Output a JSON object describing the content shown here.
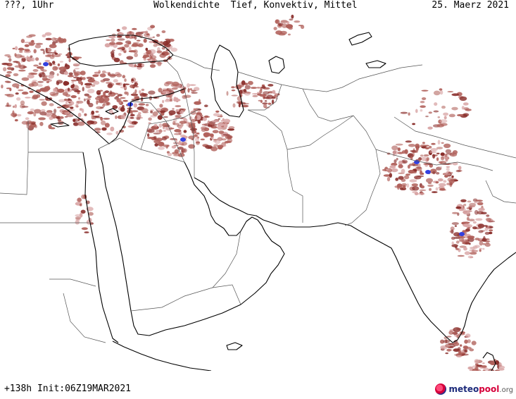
{
  "header": {
    "run_label": "???, 1Uhr",
    "title": "Wolkendichte  Tief, Konvektiv, Mittel",
    "date": "25. Maerz 2021"
  },
  "footer": {
    "forecast_info": "+138h Init:06Z19MAR2021"
  },
  "brand": {
    "name_part1": "meteo",
    "name_part2": "pool",
    "tld": ".org"
  },
  "map": {
    "region": "Middle East and South Asia",
    "field": "cloud density",
    "colors": {
      "background": "#ffffff",
      "cloud_light": "#d9a6a6",
      "cloud": "#b0605a",
      "cloud_dense": "#8a2f2c",
      "cloud_peak": "#3340e0",
      "coastline": "#000000",
      "border": "#555555"
    }
  }
}
